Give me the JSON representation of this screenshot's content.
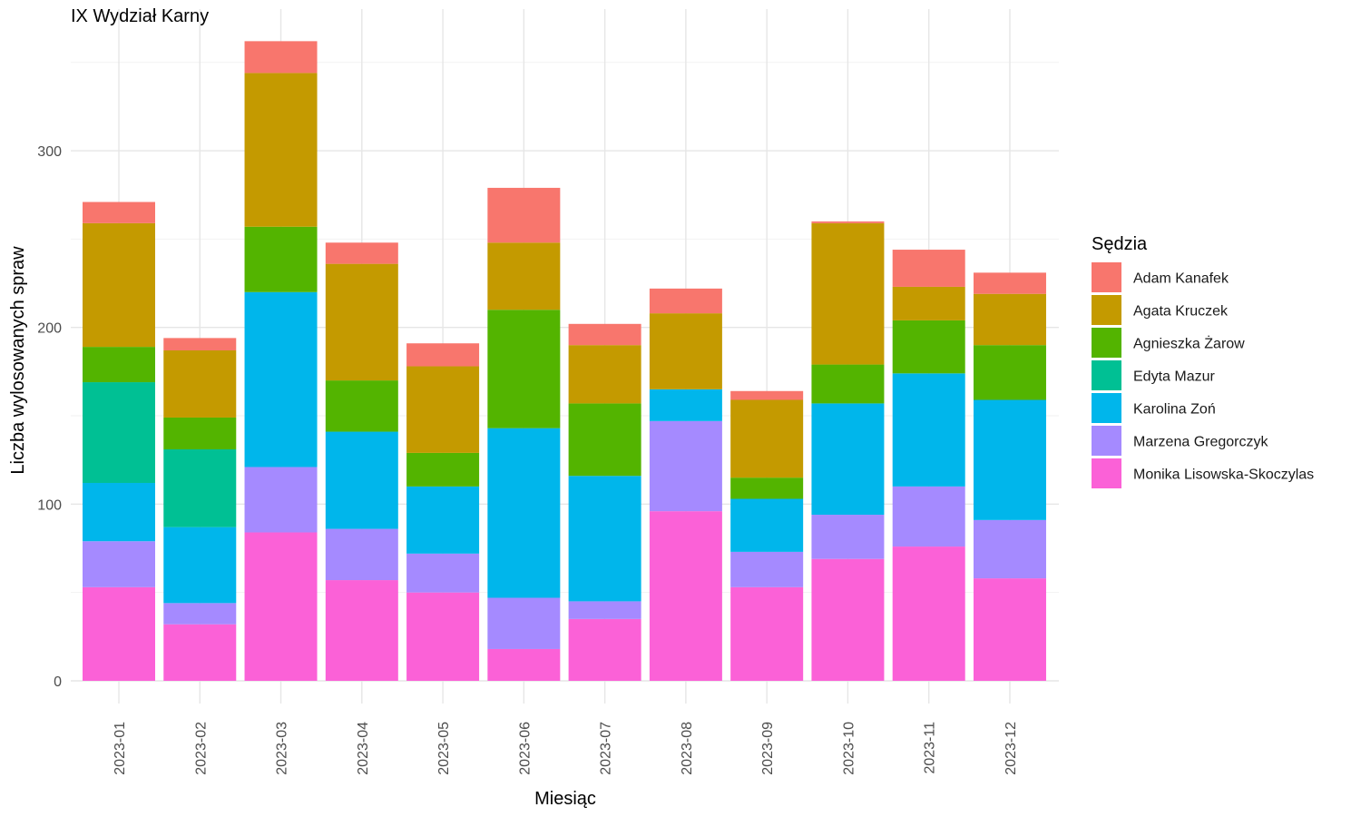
{
  "chart_data": {
    "type": "bar",
    "stacked": true,
    "title": "IX Wydział Karny",
    "xlabel": "Miesiąc",
    "ylabel": "Liczba wylosowanych spraw",
    "ylim": [
      0,
      375
    ],
    "y_ticks": [
      0,
      100,
      200,
      300
    ],
    "grid": true,
    "legend_position": "right",
    "legend_title": "Sędzia",
    "categories": [
      "2023-01",
      "2023-02",
      "2023-03",
      "2023-04",
      "2023-05",
      "2023-06",
      "2023-07",
      "2023-08",
      "2023-09",
      "2023-10",
      "2023-11",
      "2023-12"
    ],
    "series": [
      {
        "name": "Adam Kanafek",
        "color": "#F8766D",
        "values": [
          12,
          7,
          18,
          12,
          13,
          31,
          12,
          14,
          5,
          1,
          21,
          12
        ]
      },
      {
        "name": "Agata Kruczek",
        "color": "#C49A00",
        "values": [
          70,
          38,
          87,
          66,
          49,
          38,
          33,
          43,
          44,
          80,
          19,
          29
        ]
      },
      {
        "name": "Agnieszka Żarow",
        "color": "#53B400",
        "values": [
          20,
          18,
          37,
          29,
          19,
          67,
          41,
          0,
          12,
          22,
          30,
          31
        ]
      },
      {
        "name": "Edyta Mazur",
        "color": "#00C094",
        "values": [
          57,
          44,
          0,
          0,
          0,
          0,
          0,
          0,
          0,
          0,
          0,
          0
        ]
      },
      {
        "name": "Karolina Zoń",
        "color": "#00B6EB",
        "values": [
          33,
          43,
          99,
          55,
          38,
          96,
          71,
          18,
          30,
          63,
          64,
          68
        ]
      },
      {
        "name": "Marzena Gregorczyk",
        "color": "#A58AFF",
        "values": [
          26,
          12,
          37,
          29,
          22,
          29,
          10,
          51,
          20,
          25,
          34,
          33
        ]
      },
      {
        "name": "Monika Lisowska-Skoczylas",
        "color": "#FB61D7",
        "values": [
          53,
          32,
          84,
          57,
          50,
          18,
          35,
          96,
          53,
          69,
          76,
          58
        ]
      }
    ]
  }
}
